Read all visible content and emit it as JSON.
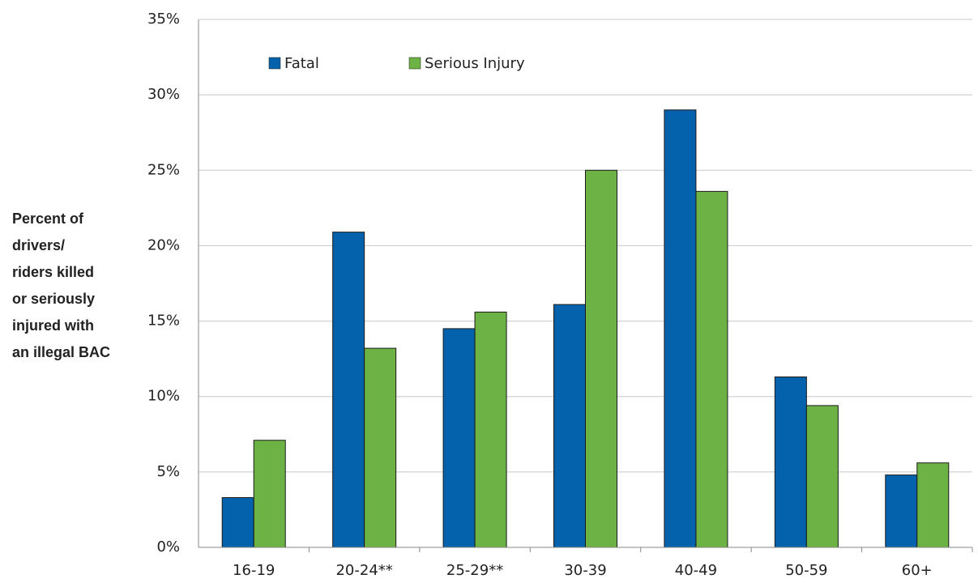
{
  "chart_data": {
    "type": "bar",
    "y_label": [
      "Percent of",
      "drivers/",
      "riders killed",
      "or seriously",
      "injured with",
      "an illegal BAC"
    ],
    "categories": [
      "16-19",
      "20-24**",
      "25-29**",
      "30-39",
      "40-49",
      "50-59",
      "60+"
    ],
    "series": [
      {
        "name": "Fatal",
        "color": "#0462ad",
        "values": [
          3.3,
          20.9,
          14.5,
          16.1,
          29.0,
          11.3,
          4.8
        ]
      },
      {
        "name": "Serious Injury",
        "color": "#6cb244",
        "values": [
          7.1,
          13.2,
          15.6,
          25.0,
          23.6,
          9.4,
          5.6
        ]
      }
    ],
    "ylim": [
      0,
      35
    ],
    "yticks": [
      {
        "value": 0,
        "label": "0%"
      },
      {
        "value": 5,
        "label": "5%"
      },
      {
        "value": 10,
        "label": "10%"
      },
      {
        "value": 15,
        "label": "15%"
      },
      {
        "value": 20,
        "label": "20%"
      },
      {
        "value": 25,
        "label": "25%"
      },
      {
        "value": 30,
        "label": "30%"
      },
      {
        "value": 35,
        "label": "35%"
      }
    ],
    "grid": true,
    "legend": "top"
  }
}
